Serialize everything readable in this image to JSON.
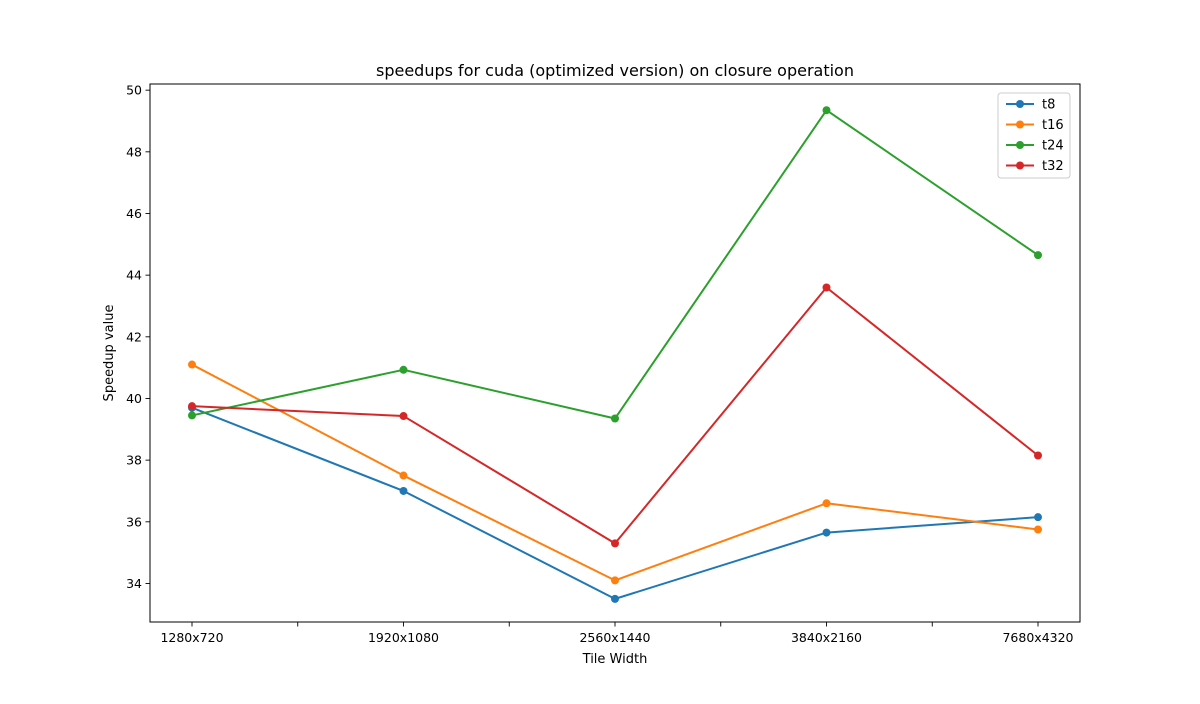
{
  "chart_data": {
    "type": "line",
    "title": "speedups for cuda (optimized version) on closure operation",
    "xlabel": "Tile Width",
    "ylabel": "Speedup value",
    "categories": [
      "1280x720",
      "1920x1080",
      "2560x1440",
      "3840x2160",
      "7680x4320"
    ],
    "ylim": [
      32.75,
      50.2
    ],
    "yticks": [
      34,
      36,
      38,
      40,
      42,
      44,
      46,
      48,
      50
    ],
    "minor_x_ticks": true,
    "grid": false,
    "legend_position": "top-right",
    "series": [
      {
        "name": "t8",
        "color": "#1f77b4",
        "values": [
          39.7,
          37.0,
          33.5,
          35.65,
          36.15
        ]
      },
      {
        "name": "t16",
        "color": "#ff7f0e",
        "values": [
          41.1,
          37.5,
          34.1,
          36.6,
          35.75
        ]
      },
      {
        "name": "t24",
        "color": "#2ca02c",
        "values": [
          39.45,
          40.93,
          39.35,
          49.35,
          44.65
        ]
      },
      {
        "name": "t32",
        "color": "#d62728",
        "values": [
          39.75,
          39.43,
          35.3,
          43.6,
          38.15
        ]
      }
    ]
  }
}
